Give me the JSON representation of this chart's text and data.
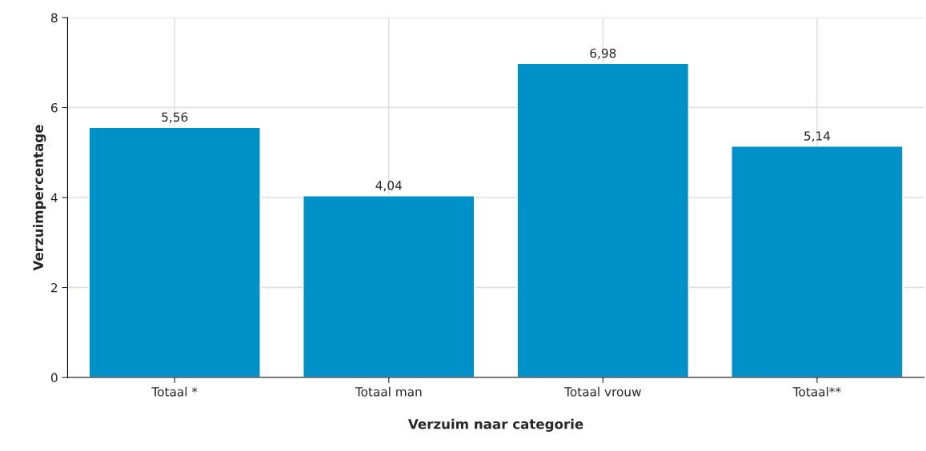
{
  "chart_data": {
    "type": "bar",
    "xlabel": "Verzuim naar categorie",
    "ylabel": "Verzuimpercentage",
    "categories": [
      "Totaal *",
      "Totaal man",
      "Totaal vrouw",
      "Totaal**"
    ],
    "values": [
      5.56,
      4.04,
      6.98,
      5.14
    ],
    "value_labels": [
      "5,56",
      "4,04",
      "6,98",
      "5,14"
    ],
    "color": "#0091c8",
    "ylim": [
      0,
      8
    ],
    "yticks": [
      0,
      2,
      4,
      6,
      8
    ],
    "grid": true
  }
}
